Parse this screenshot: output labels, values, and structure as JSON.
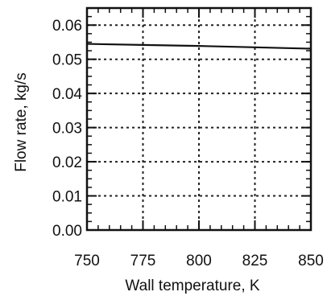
{
  "chart_data": {
    "type": "line",
    "title": "",
    "xlabel": "Wall temperature, K",
    "ylabel": "Flow rate, kg/s",
    "xlim": [
      750,
      850
    ],
    "ylim": [
      0.0,
      0.065
    ],
    "xticks": [
      750,
      775,
      800,
      825,
      850
    ],
    "xtick_labels": [
      "750",
      "775",
      "800",
      "825",
      "850"
    ],
    "yticks": [
      0.0,
      0.01,
      0.02,
      0.03,
      0.04,
      0.05,
      0.06
    ],
    "ytick_labels": [
      "0.00",
      "0.01",
      "0.02",
      "0.03",
      "0.04",
      "0.05",
      "0.06"
    ],
    "grid": true,
    "grid_style": "dotted",
    "series": [
      {
        "x": [
          750,
          775,
          800,
          825,
          850
        ],
        "values": [
          0.0545,
          0.0542,
          0.0539,
          0.0535,
          0.0531
        ]
      }
    ],
    "colors": {
      "line": "#111111",
      "axes": "#111111",
      "grid": "#222222"
    }
  }
}
